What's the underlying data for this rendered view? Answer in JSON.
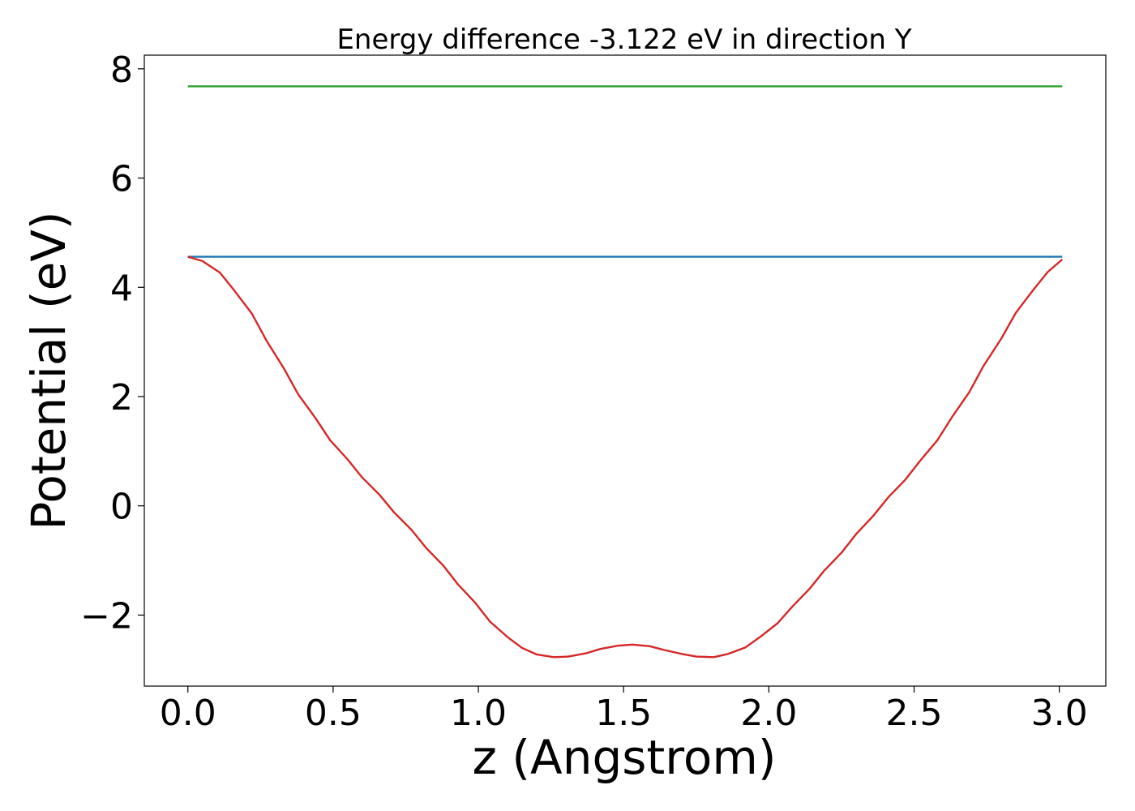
{
  "chart_data": {
    "type": "line",
    "title": "Energy difference -3.122 eV in direction Y",
    "xlabel": "z (Angstrom)",
    "ylabel": "Potential (eV)",
    "xlim": [
      -0.15,
      3.16
    ],
    "ylim": [
      -3.3,
      8.25
    ],
    "x_ticks": [
      0.0,
      0.5,
      1.0,
      1.5,
      2.0,
      2.5,
      3.0
    ],
    "x_tick_labels": [
      "0.0",
      "0.5",
      "1.0",
      "1.5",
      "2.0",
      "2.5",
      "3.0"
    ],
    "y_ticks": [
      -2,
      0,
      2,
      4,
      6,
      8
    ],
    "y_tick_labels": [
      "−2",
      "0",
      "2",
      "4",
      "6",
      "8"
    ],
    "grid": false,
    "legend": "none",
    "series": [
      {
        "color": "#2ca02c",
        "x": [
          0.0,
          3.01
        ],
        "y": [
          7.68,
          7.68
        ]
      },
      {
        "color": "#1f77b4",
        "x": [
          0.0,
          3.01
        ],
        "y": [
          4.56,
          4.56
        ]
      },
      {
        "color": "#d62728",
        "x": [
          0.0,
          0.05,
          0.11,
          0.16,
          0.22,
          0.27,
          0.33,
          0.38,
          0.44,
          0.49,
          0.55,
          0.6,
          0.66,
          0.71,
          0.77,
          0.82,
          0.88,
          0.93,
          0.99,
          1.04,
          1.1,
          1.15,
          1.2,
          1.26,
          1.31,
          1.37,
          1.42,
          1.48,
          1.53,
          1.59,
          1.64,
          1.7,
          1.75,
          1.81,
          1.86,
          1.92,
          1.97,
          2.03,
          2.08,
          2.14,
          2.19,
          2.25,
          2.3,
          2.36,
          2.41,
          2.47,
          2.52,
          2.58,
          2.63,
          2.69,
          2.74,
          2.8,
          2.85,
          2.91,
          2.96,
          3.01
        ],
        "y": [
          4.56,
          4.48,
          4.27,
          3.94,
          3.52,
          3.03,
          2.52,
          2.04,
          1.6,
          1.2,
          0.85,
          0.52,
          0.2,
          -0.12,
          -0.44,
          -0.77,
          -1.1,
          -1.44,
          -1.78,
          -2.12,
          -2.4,
          -2.6,
          -2.72,
          -2.77,
          -2.76,
          -2.7,
          -2.62,
          -2.56,
          -2.54,
          -2.57,
          -2.64,
          -2.71,
          -2.76,
          -2.77,
          -2.71,
          -2.59,
          -2.4,
          -2.15,
          -1.85,
          -1.52,
          -1.19,
          -0.86,
          -0.52,
          -0.18,
          0.15,
          0.48,
          0.82,
          1.2,
          1.62,
          2.08,
          2.57,
          3.06,
          3.53,
          3.95,
          4.28,
          4.51
        ]
      }
    ]
  }
}
